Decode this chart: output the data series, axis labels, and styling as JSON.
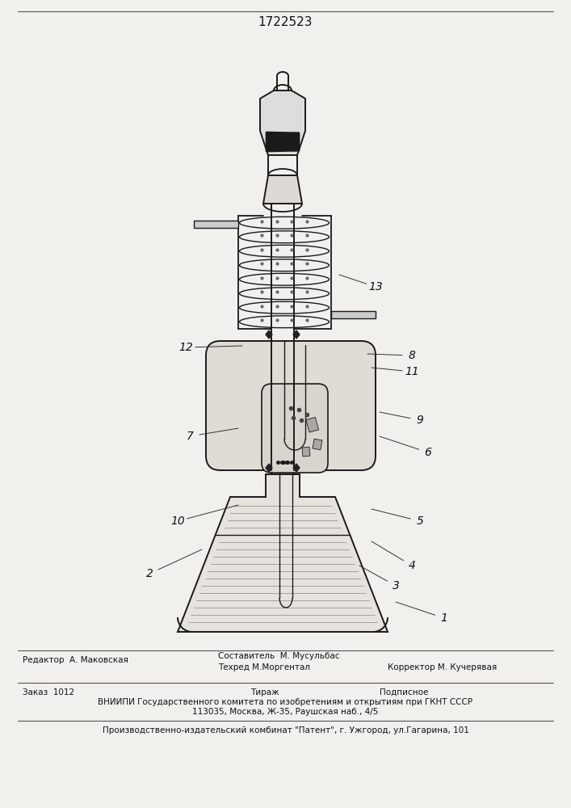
{
  "patent_number": "1722523",
  "bg": "#f2f0ed",
  "lc": "#1a1a1a",
  "fig_width": 7.07,
  "fig_height": 10.0,
  "dpi": 100,
  "footer": {
    "line1_left": "Редактор  А. Маковская",
    "line1_mid_top": "Составитель  М. Мусульбас",
    "line1_mid_bot": "Техред М.Моргентал",
    "line1_right": "Корректор М. Кучерявая",
    "line2_col1": "Заказ  1012",
    "line2_col2": "Тираж",
    "line2_col3": "Подписное",
    "line3": "ВНИИПИ Государственного комитета по изобретениям и открытиям при ГКНТ СССР",
    "line4": "113035, Москва, Ж-35, Раушская наб., 4/5",
    "line5": "Производственно-издательский комбинат \"Патент\", г. Ужгород, ул.Гагарина, 101"
  }
}
